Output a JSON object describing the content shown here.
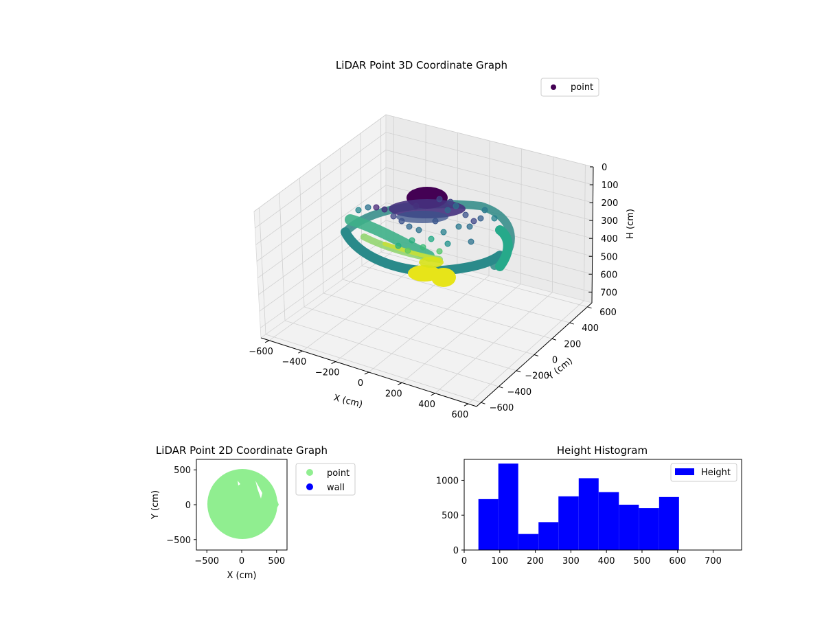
{
  "chart_data": [
    {
      "type": "scatter3d",
      "title": "LiDAR Point 3D Coordinate Graph",
      "xlabel": "X (cm)",
      "ylabel": "Y (cm)",
      "zlabel": "H (cm)",
      "xlim": [
        -650,
        650
      ],
      "ylim": [
        -650,
        650
      ],
      "zlim": [
        0,
        760
      ],
      "x_ticks": [
        -600,
        -400,
        -200,
        0,
        200,
        400,
        600
      ],
      "y_ticks": [
        -600,
        -400,
        -200,
        0,
        200,
        400,
        600
      ],
      "z_ticks": [
        0,
        100,
        200,
        300,
        400,
        500,
        600,
        700
      ],
      "z_inverted": true,
      "colormap": "viridis",
      "legend": {
        "position": "top-right",
        "entries": [
          {
            "name": "point",
            "color": "#440154"
          }
        ]
      },
      "structure": {
        "ring": {
          "radius": 500,
          "height_range": [
            300,
            500
          ]
        },
        "top_cap": {
          "radius": 100,
          "height": 150
        },
        "bottom_cluster": {
          "radius": 90,
          "height_range": [
            620,
            700
          ]
        }
      }
    },
    {
      "type": "scatter",
      "title": "LiDAR Point 2D Coordinate Graph",
      "xlabel": "X (cm)",
      "ylabel": "Y (cm)",
      "xlim": [
        -650,
        650
      ],
      "ylim": [
        -650,
        650
      ],
      "x_ticks": [
        -500,
        0,
        500
      ],
      "y_ticks": [
        -500,
        0,
        500
      ],
      "legend": {
        "position": "right",
        "entries": [
          {
            "name": "point",
            "color": "#90ee90"
          },
          {
            "name": "wall",
            "color": "#0000ff"
          }
        ]
      },
      "shape": {
        "disk_radius": 500,
        "gap_near": [
          250,
          300
        ]
      }
    },
    {
      "type": "histogram",
      "title": "Height Histogram",
      "xlim": [
        0,
        780
      ],
      "ylim": [
        0,
        1300
      ],
      "x_ticks": [
        0,
        100,
        200,
        300,
        400,
        500,
        600,
        700
      ],
      "y_ticks": [
        0,
        500,
        1000
      ],
      "bin_edges": [
        40,
        96,
        152,
        209,
        265,
        322,
        378,
        435,
        491,
        548,
        604
      ],
      "counts": [
        730,
        1240,
        230,
        400,
        770,
        1030,
        830,
        650,
        600,
        760
      ],
      "series": [
        {
          "name": "Height",
          "color": "#0000ff"
        }
      ],
      "legend": {
        "position": "top-right"
      }
    }
  ]
}
